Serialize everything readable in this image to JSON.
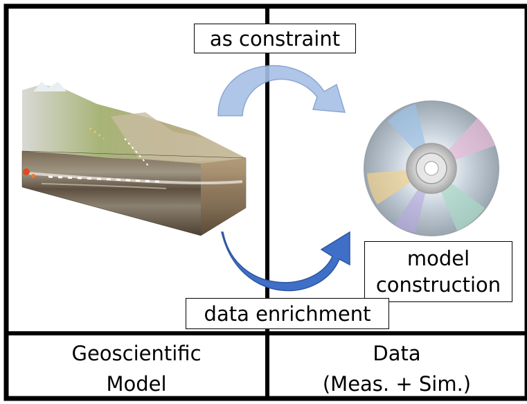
{
  "labels": {
    "as_constraint": "as constraint",
    "data_enrichment": "data enrichment",
    "model_construction_line1": "model",
    "model_construction_line2": "construction"
  },
  "footer": {
    "left_line1": "Geoscientific",
    "left_line2": "Model",
    "right_line1": "Data",
    "right_line2": "(Meas. + Sim.)"
  },
  "colors": {
    "border": "#000000",
    "arrow_top": "#a8c0e6",
    "arrow_bottom": "#3f6fc6",
    "background": "#ffffff"
  },
  "icons": {
    "left_picture": "geology-block-diagram",
    "right_picture": "compact-disc"
  }
}
